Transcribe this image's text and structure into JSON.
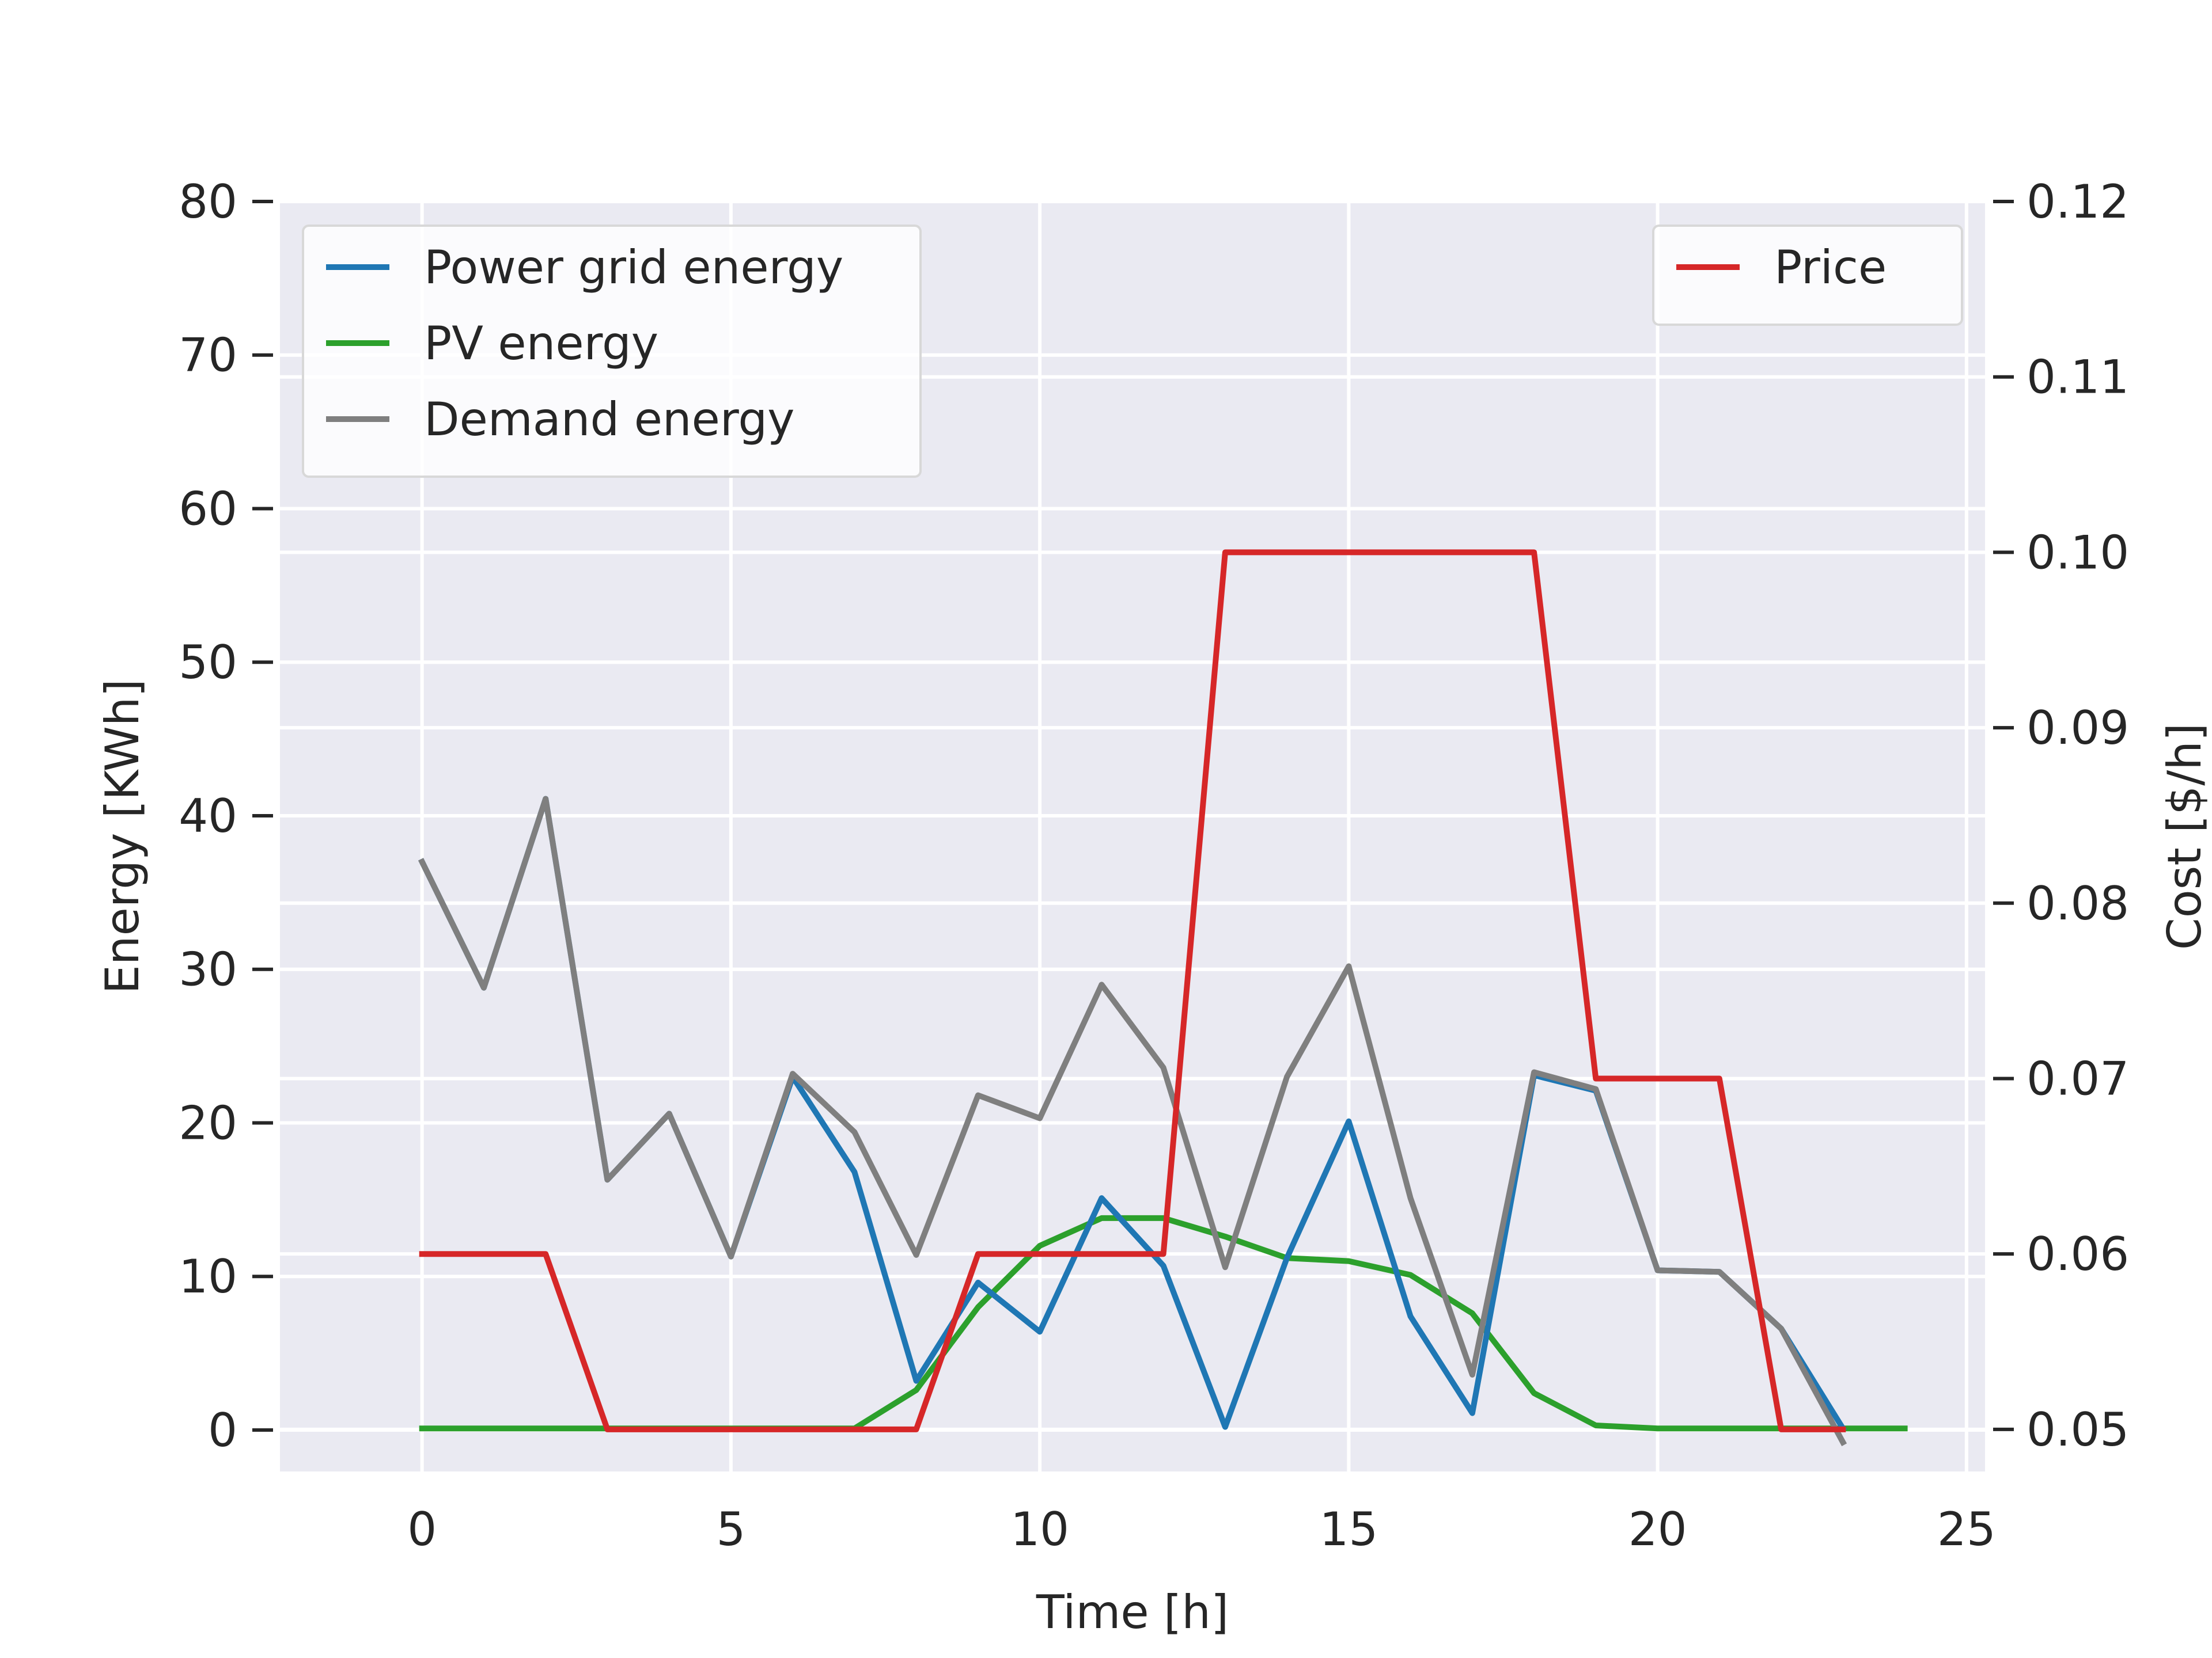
{
  "chart_data": {
    "type": "line",
    "title": "",
    "xlabel": "Time [h]",
    "ylabel_left": "Energy [KWh]",
    "ylabel_right": "Cost [$/h]",
    "xlim": [
      -2.3,
      25.3
    ],
    "ylim_left": [
      -2.7,
      80
    ],
    "ylim_right": [
      0.0476,
      0.12
    ],
    "xticks": [
      0,
      5,
      10,
      15,
      20,
      25
    ],
    "yticks_left": [
      0,
      10,
      20,
      30,
      40,
      50,
      60,
      70,
      80
    ],
    "yticks_right": [
      0.05,
      0.06,
      0.07,
      0.08,
      0.09,
      0.1,
      0.11,
      0.12
    ],
    "ytick_labels_right": [
      "0.05",
      "0.06",
      "0.07",
      "0.08",
      "0.09",
      "0.10",
      "0.11",
      "0.12"
    ],
    "grid": true,
    "background": "#EAEAF2",
    "legend_left": {
      "placement": "upper left",
      "entries": [
        "Power grid energy",
        "PV energy",
        "Demand energy"
      ]
    },
    "legend_right": {
      "placement": "upper right",
      "entries": [
        "Price"
      ]
    },
    "series": [
      {
        "name": "Power grid energy",
        "axis": "left",
        "color": "#1F77B4",
        "x": [
          0,
          1,
          2,
          3,
          4,
          5,
          6,
          7,
          8,
          9,
          10,
          11,
          12,
          13,
          14,
          15,
          16,
          17,
          18,
          19,
          20,
          21,
          22,
          23
        ],
        "y": [
          37,
          28.8,
          41.1,
          16.3,
          20.6,
          11.3,
          23,
          16.8,
          3.2,
          9.6,
          6.4,
          15.1,
          10.7,
          0.2,
          11.2,
          20.1,
          7.4,
          1.1,
          23.1,
          22.1,
          10.4,
          10.3,
          6.6,
          0.1
        ]
      },
      {
        "name": "PV energy",
        "axis": "left",
        "color": "#2CA02C",
        "x": [
          0,
          1,
          2,
          3,
          4,
          5,
          6,
          7,
          8,
          9,
          10,
          11,
          12,
          13,
          14,
          15,
          16,
          17,
          18,
          19,
          20,
          21,
          22,
          23,
          24
        ],
        "y": [
          0.1,
          0.1,
          0.1,
          0.1,
          0.1,
          0.1,
          0.1,
          0.1,
          2.6,
          8.0,
          12.0,
          13.8,
          13.8,
          12.6,
          11.2,
          11.0,
          10.1,
          7.6,
          2.4,
          0.3,
          0.1,
          0.1,
          0.1,
          0.1,
          0.1
        ]
      },
      {
        "name": "Demand energy",
        "axis": "left",
        "color": "#7F7F7F",
        "x": [
          0,
          1,
          2,
          3,
          4,
          5,
          6,
          7,
          8,
          9,
          10,
          11,
          12,
          13,
          14,
          15,
          16,
          17,
          18,
          19,
          20,
          21,
          22,
          23
        ],
        "y": [
          37,
          28.8,
          41.1,
          16.3,
          20.6,
          11.3,
          23.2,
          19.4,
          11.4,
          21.8,
          20.3,
          29.0,
          23.6,
          10.6,
          23.0,
          30.2,
          15.1,
          3.6,
          23.3,
          22.2,
          10.4,
          10.3,
          6.6,
          -0.8
        ]
      },
      {
        "name": "Price",
        "axis": "right",
        "color": "#D62728",
        "x": [
          0,
          1,
          2,
          3,
          4,
          5,
          6,
          7,
          8,
          9,
          10,
          11,
          12,
          13,
          14,
          15,
          16,
          17,
          18,
          19,
          20,
          21,
          22,
          23
        ],
        "y": [
          0.06,
          0.06,
          0.06,
          0.05,
          0.05,
          0.05,
          0.05,
          0.05,
          0.05,
          0.06,
          0.06,
          0.06,
          0.06,
          0.1,
          0.1,
          0.1,
          0.1,
          0.1,
          0.1,
          0.07,
          0.07,
          0.07,
          0.05,
          0.05
        ]
      }
    ]
  }
}
